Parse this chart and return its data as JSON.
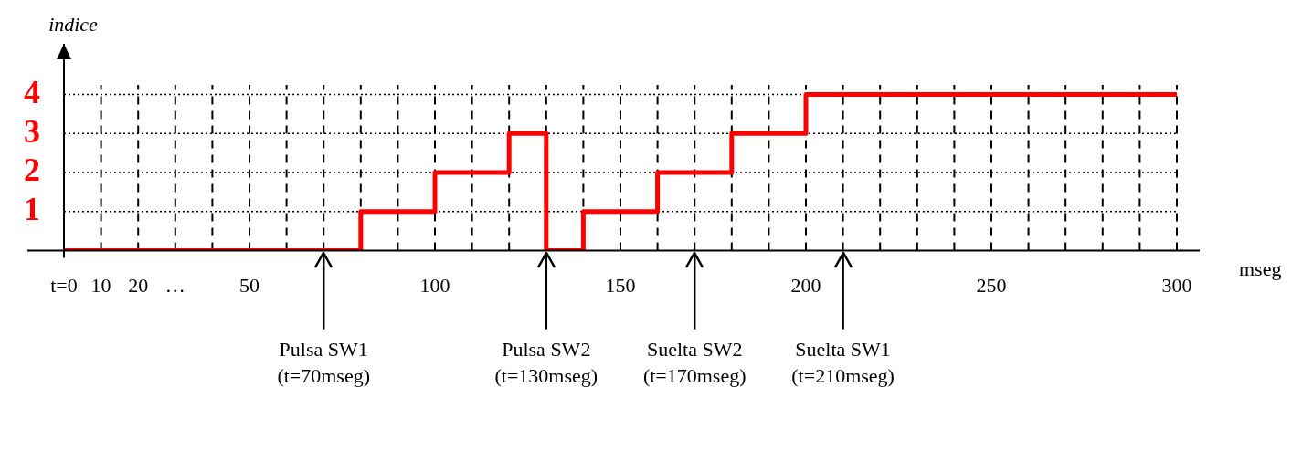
{
  "chart_data": {
    "type": "step",
    "xlabel": "mseg",
    "ylabel": "indice",
    "x": [
      0,
      80,
      100,
      120,
      130,
      140,
      160,
      180,
      200,
      300
    ],
    "series": [
      {
        "color": "#ff0000",
        "values": [
          0,
          1,
          2,
          3,
          0,
          1,
          2,
          3,
          4,
          4
        ]
      }
    ],
    "xlim": [
      0,
      300
    ],
    "xticks": [
      {
        "value": 0,
        "label": "t=0"
      },
      10,
      20,
      {
        "value": 30,
        "label": "…"
      },
      {
        "value": 40,
        "label": null
      },
      50,
      {
        "value": 60,
        "label": null
      },
      {
        "value": 70,
        "label": null
      },
      {
        "value": 80,
        "label": null
      },
      {
        "value": 90,
        "label": null
      },
      100,
      {
        "value": 110,
        "label": null
      },
      {
        "value": 120,
        "label": null
      },
      {
        "value": 130,
        "label": null
      },
      {
        "value": 140,
        "label": null
      },
      150,
      {
        "value": 160,
        "label": null
      },
      {
        "value": 170,
        "label": null
      },
      {
        "value": 180,
        "label": null
      },
      {
        "value": 190,
        "label": null
      },
      200,
      {
        "value": 210,
        "label": null
      },
      {
        "value": 220,
        "label": null
      },
      {
        "value": 230,
        "label": null
      },
      {
        "value": 240,
        "label": null
      },
      250,
      {
        "value": 260,
        "label": null
      },
      {
        "value": 270,
        "label": null
      },
      {
        "value": 280,
        "label": null
      },
      {
        "value": 290,
        "label": null
      },
      300
    ],
    "ylim": [
      0,
      5.3
    ],
    "yticks": [
      1,
      2,
      3,
      4
    ],
    "grid": true,
    "legend": false,
    "ref_lines": [
      {
        "axis": "x",
        "value": 70,
        "color": "#000000",
        "line_style": "solid",
        "label": "Pulsa SW1\n(t=70mseg)"
      },
      {
        "axis": "x",
        "value": 130,
        "color": "#000000",
        "line_style": "solid",
        "label": "Pulsa SW2\n(t=130mseg)"
      },
      {
        "axis": "x",
        "value": 170,
        "color": "#000000",
        "line_style": "solid",
        "label": "Suelta SW2\n(t=170mseg)"
      },
      {
        "axis": "x",
        "value": 210,
        "color": "#000000",
        "line_style": "solid",
        "label": "Suelta SW1\n(t=210mseg)"
      }
    ]
  }
}
